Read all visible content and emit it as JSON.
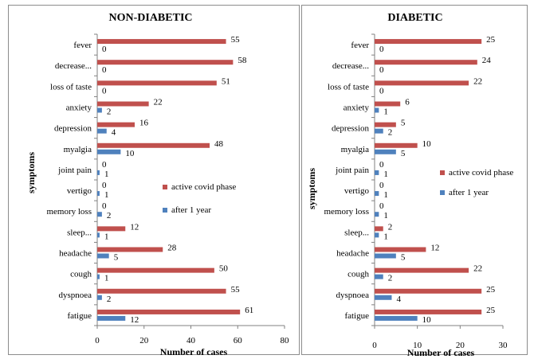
{
  "chart_data": [
    {
      "type": "bar",
      "orientation": "horizontal",
      "title": "NON-DIABETIC",
      "xlabel": "Number of cases",
      "ylabel": "symptoms",
      "xlim": [
        0,
        80
      ],
      "xticks": [
        0,
        20,
        40,
        60,
        80
      ],
      "grid": false,
      "legend_position": "right-middle",
      "categories": [
        "fever",
        "decrease...",
        "loss of taste",
        "anxiety",
        "depression",
        "myalgia",
        "joint pain",
        "vertigo",
        "memory loss",
        "sleep...",
        "headache",
        "cough",
        "dyspnoea",
        "fatigue"
      ],
      "series": [
        {
          "name": "active covid phase",
          "color": "#c0504d",
          "values": [
            55,
            58,
            51,
            22,
            16,
            48,
            0,
            0,
            0,
            12,
            28,
            50,
            55,
            61
          ]
        },
        {
          "name": "after 1 year",
          "color": "#4f81bd",
          "values": [
            0,
            0,
            0,
            2,
            4,
            10,
            1,
            1,
            2,
            1,
            5,
            1,
            2,
            12
          ]
        }
      ]
    },
    {
      "type": "bar",
      "orientation": "horizontal",
      "title": "DIABETIC",
      "xlabel": "Number of cases",
      "ylabel": "symptoms",
      "xlim": [
        0,
        30
      ],
      "xticks": [
        0,
        10,
        20,
        30
      ],
      "grid": false,
      "legend_position": "right-middle",
      "categories": [
        "fever",
        "decrease...",
        "loss of taste",
        "anxiety",
        "depression",
        "myalgia",
        "joint pain",
        "vertigo",
        "memory loss",
        "sleep...",
        "headache",
        "cough",
        "dyspnoea",
        "fatigue"
      ],
      "series": [
        {
          "name": "active covid phase",
          "color": "#c0504d",
          "values": [
            25,
            24,
            22,
            6,
            5,
            10,
            0,
            0,
            0,
            2,
            12,
            22,
            25,
            25
          ]
        },
        {
          "name": "after 1 year",
          "color": "#4f81bd",
          "values": [
            0,
            0,
            0,
            1,
            2,
            5,
            1,
            1,
            1,
            1,
            5,
            2,
            4,
            10
          ]
        }
      ]
    }
  ]
}
